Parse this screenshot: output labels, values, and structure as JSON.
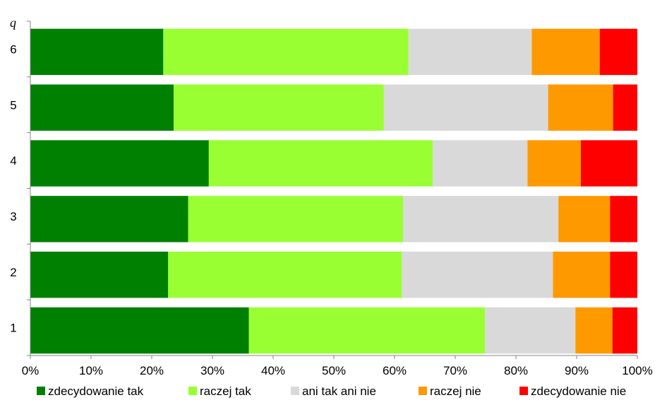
{
  "chart_data": {
    "type": "bar",
    "orientation": "horizontal",
    "stacked": "percent",
    "y_axis_title": "q",
    "categories": [
      "1",
      "2",
      "3",
      "4",
      "5",
      "6"
    ],
    "series": [
      {
        "name": "zdecydowanie tak",
        "color": "#008000",
        "values": [
          36.0,
          22.7,
          26.0,
          29.4,
          23.6,
          21.9
        ]
      },
      {
        "name": "raczej tak",
        "color": "#99ff33",
        "values": [
          38.9,
          38.5,
          35.4,
          36.9,
          34.6,
          40.4
        ]
      },
      {
        "name": "ani tak ani nie",
        "color": "#d9d9d9",
        "values": [
          14.9,
          24.9,
          25.6,
          15.6,
          27.1,
          20.3
        ]
      },
      {
        "name": "raczej nie",
        "color": "#ff9900",
        "values": [
          6.1,
          9.4,
          8.5,
          8.8,
          10.7,
          11.2
        ]
      },
      {
        "name": "zdecydowanie nie",
        "color": "#ff0000",
        "values": [
          4.1,
          4.5,
          4.5,
          9.3,
          4.0,
          6.2
        ]
      }
    ],
    "x_ticks": [
      "0%",
      "10%",
      "20%",
      "30%",
      "40%",
      "50%",
      "60%",
      "70%",
      "80%",
      "90%",
      "100%"
    ],
    "xlim": [
      0,
      100
    ],
    "grid": false,
    "legend_position": "bottom"
  }
}
